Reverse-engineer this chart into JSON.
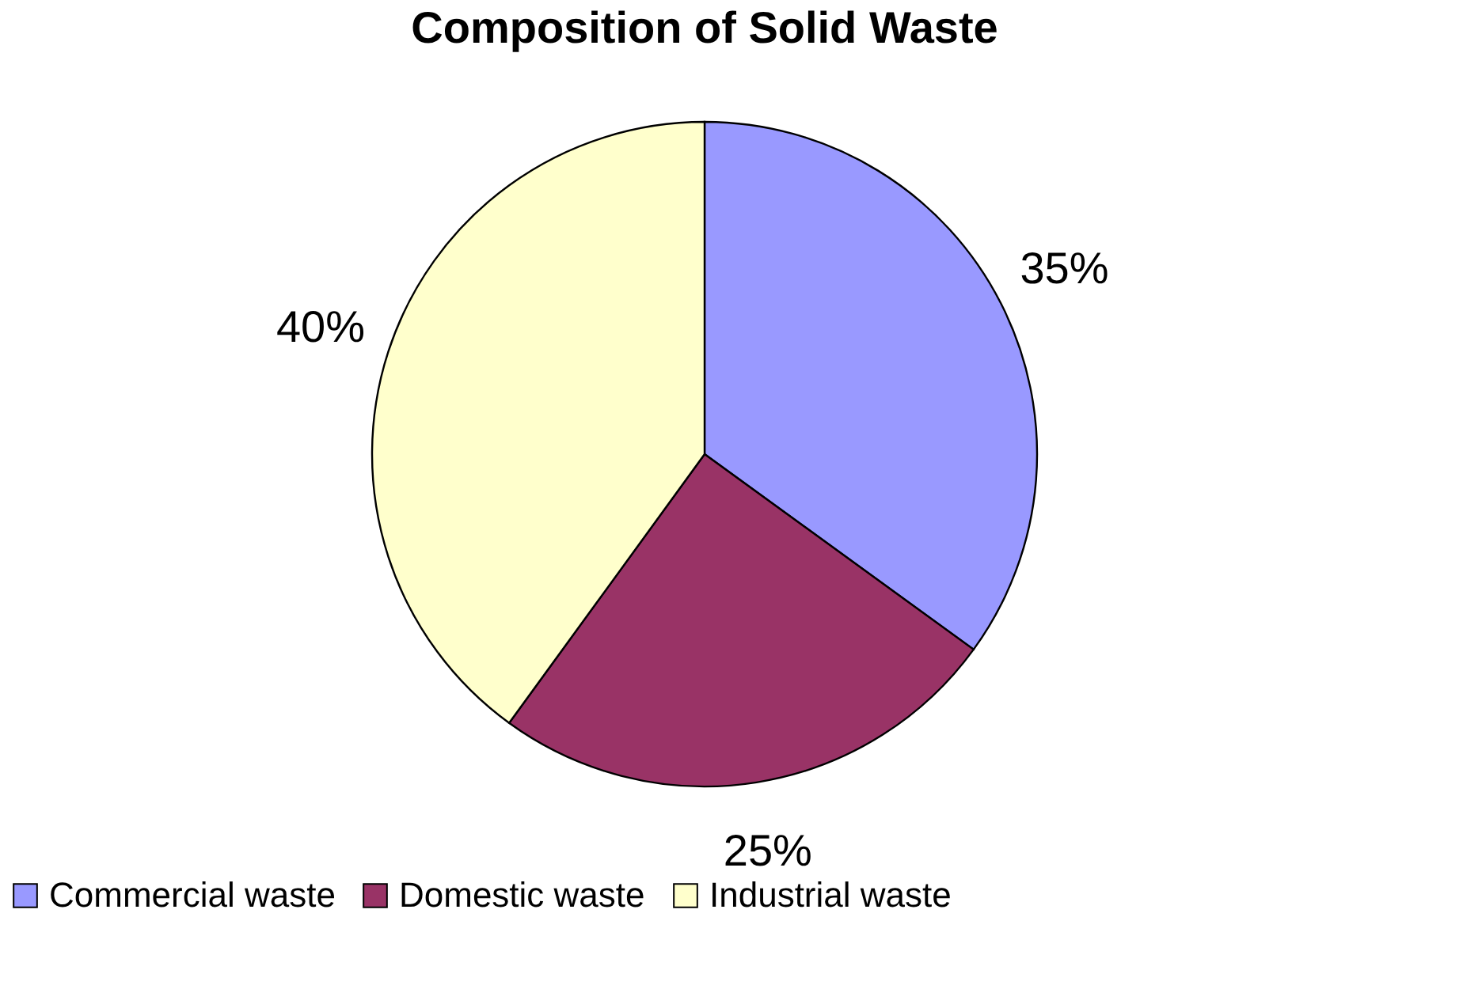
{
  "chart_data": {
    "type": "pie",
    "title": "Composition of Solid Waste",
    "categories": [
      "Commercial waste",
      "Domestic waste",
      "Industrial waste"
    ],
    "values": [
      35,
      25,
      40
    ],
    "colors": [
      "#9999ff",
      "#993366",
      "#ffffcc"
    ],
    "value_labels": [
      "35%",
      "25%",
      "40%"
    ],
    "legend": "bottom"
  }
}
